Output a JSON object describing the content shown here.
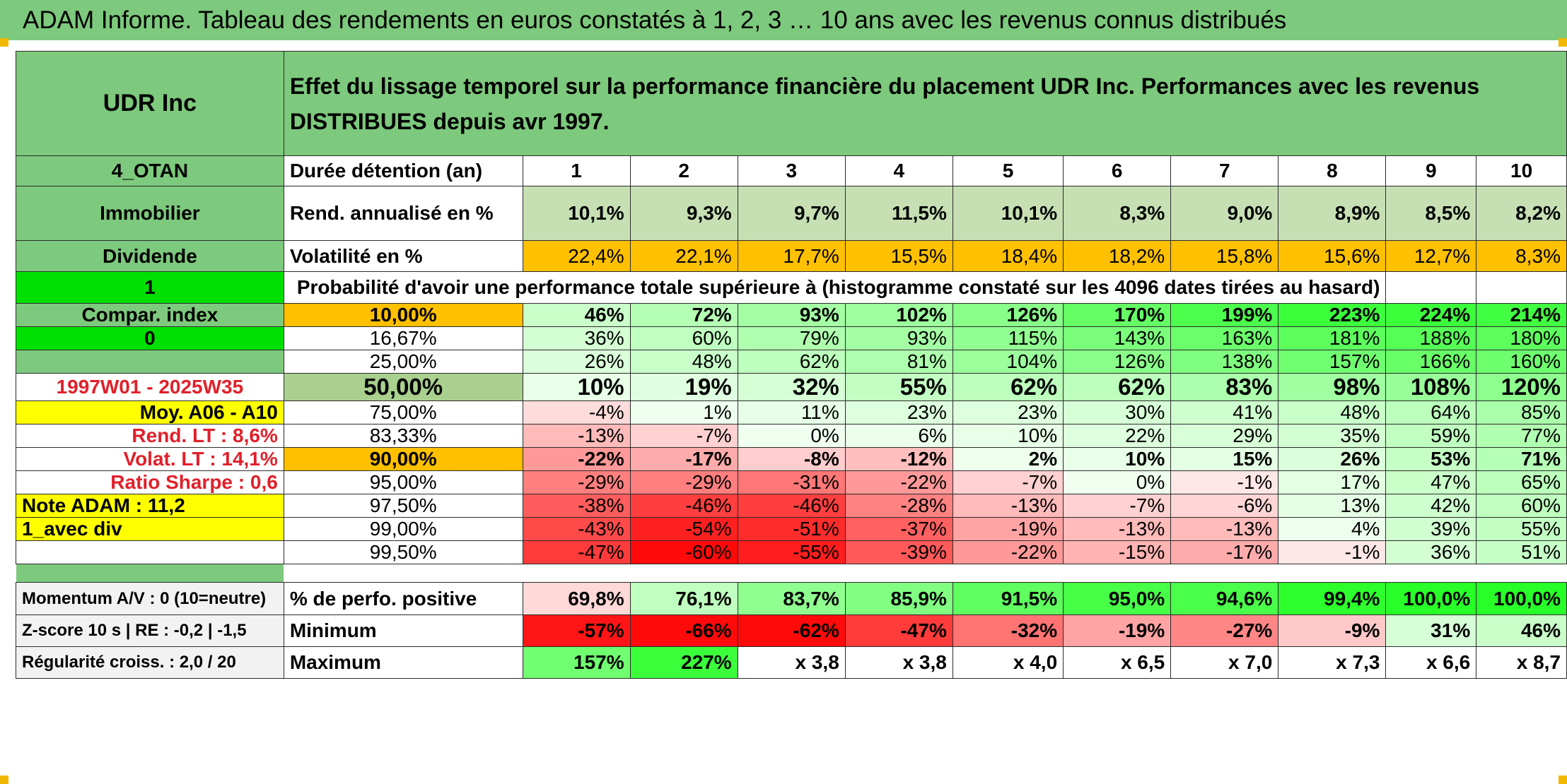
{
  "title": "ADAM Informe. Tableau des rendements en euros constatés à 1, 2, 3 … 10 ans avec les revenus connus distribués",
  "side": {
    "name": "UDR Inc",
    "code": "4_OTAN",
    "sector": "Immobilier",
    "type": "Dividende",
    "flag1": "1",
    "compar": "Compar. index",
    "flag0": "0",
    "period": "1997W01 - 2025W35",
    "moy": "Moy. A06 - A10",
    "rend": "Rend. LT :   8,6%",
    "volat": "Volat. LT :   14,1%",
    "sharpe": "Ratio Sharpe :    0,6",
    "note": "Note ADAM : 11,2",
    "avec": "1_avec div",
    "momentum": "Momentum A/V : 0 (10=neutre)",
    "zscore": "Z-score 10 s | RE : -0,2 | -1,5",
    "regularite": "Régularité croiss. : 2,0 / 20"
  },
  "description": "Effet du lissage temporel sur la performance financière du placement UDR Inc. Performances avec les revenus DISTRIBUES depuis avr 1997.",
  "duree": {
    "label": "Durée détention (an)",
    "years": [
      "1",
      "2",
      "3",
      "4",
      "5",
      "6",
      "7",
      "8",
      "9",
      "10"
    ]
  },
  "rend": {
    "label": "Rend. annualisé en %",
    "values": [
      "10,1%",
      "9,3%",
      "9,7%",
      "11,5%",
      "10,1%",
      "8,3%",
      "9,0%",
      "8,9%",
      "8,5%",
      "8,2%"
    ]
  },
  "volat": {
    "label": "Volatilité en %",
    "values": [
      "22,4%",
      "22,1%",
      "17,7%",
      "15,5%",
      "18,4%",
      "18,2%",
      "15,8%",
      "15,6%",
      "12,7%",
      "8,3%"
    ]
  },
  "proba_label": "Probabilité d'avoir une performance totale supérieure à (histogramme constaté sur les 4096 dates tirées au hasard)",
  "rows": [
    {
      "p": "10,00%",
      "v": [
        "46%",
        "72%",
        "93%",
        "102%",
        "126%",
        "170%",
        "199%",
        "223%",
        "224%",
        "214%"
      ]
    },
    {
      "p": "16,67%",
      "v": [
        "36%",
        "60%",
        "79%",
        "93%",
        "115%",
        "143%",
        "163%",
        "181%",
        "188%",
        "180%"
      ]
    },
    {
      "p": "25,00%",
      "v": [
        "26%",
        "48%",
        "62%",
        "81%",
        "104%",
        "126%",
        "138%",
        "157%",
        "166%",
        "160%"
      ]
    },
    {
      "p": "50,00%",
      "v": [
        "10%",
        "19%",
        "32%",
        "55%",
        "62%",
        "62%",
        "83%",
        "98%",
        "108%",
        "120%"
      ]
    },
    {
      "p": "75,00%",
      "v": [
        "-4%",
        "1%",
        "11%",
        "23%",
        "23%",
        "30%",
        "41%",
        "48%",
        "64%",
        "85%"
      ]
    },
    {
      "p": "83,33%",
      "v": [
        "-13%",
        "-7%",
        "0%",
        "6%",
        "10%",
        "22%",
        "29%",
        "35%",
        "59%",
        "77%"
      ]
    },
    {
      "p": "90,00%",
      "v": [
        "-22%",
        "-17%",
        "-8%",
        "-12%",
        "2%",
        "10%",
        "15%",
        "26%",
        "53%",
        "71%"
      ]
    },
    {
      "p": "95,00%",
      "v": [
        "-29%",
        "-29%",
        "-31%",
        "-22%",
        "-7%",
        "0%",
        "-1%",
        "17%",
        "47%",
        "65%"
      ]
    },
    {
      "p": "97,50%",
      "v": [
        "-38%",
        "-46%",
        "-46%",
        "-28%",
        "-13%",
        "-7%",
        "-6%",
        "13%",
        "42%",
        "60%"
      ]
    },
    {
      "p": "99,00%",
      "v": [
        "-43%",
        "-54%",
        "-51%",
        "-37%",
        "-19%",
        "-13%",
        "-13%",
        "4%",
        "39%",
        "55%"
      ]
    },
    {
      "p": "99,50%",
      "v": [
        "-47%",
        "-60%",
        "-55%",
        "-39%",
        "-22%",
        "-15%",
        "-17%",
        "-1%",
        "36%",
        "51%"
      ]
    }
  ],
  "positive": {
    "label": "% de perfo. positive",
    "values": [
      "69,8%",
      "76,1%",
      "83,7%",
      "85,9%",
      "91,5%",
      "95,0%",
      "94,6%",
      "99,4%",
      "100,0%",
      "100,0%"
    ]
  },
  "minimum": {
    "label": "Minimum",
    "values": [
      "-57%",
      "-66%",
      "-62%",
      "-47%",
      "-32%",
      "-19%",
      "-27%",
      "-9%",
      "31%",
      "46%"
    ]
  },
  "maximum": {
    "label": "Maximum",
    "values": [
      "157%",
      "227%",
      "x 3,8",
      "x 3,8",
      "x 4,0",
      "x 6,5",
      "x 7,0",
      "x 7,3",
      "x 6,6",
      "x 8,7"
    ]
  },
  "colors": {
    "header_green": "#7dc97d",
    "orange": "#ffc000",
    "yellow": "#ffff00",
    "lime": "#00e000",
    "red_text": "#e0202a"
  }
}
